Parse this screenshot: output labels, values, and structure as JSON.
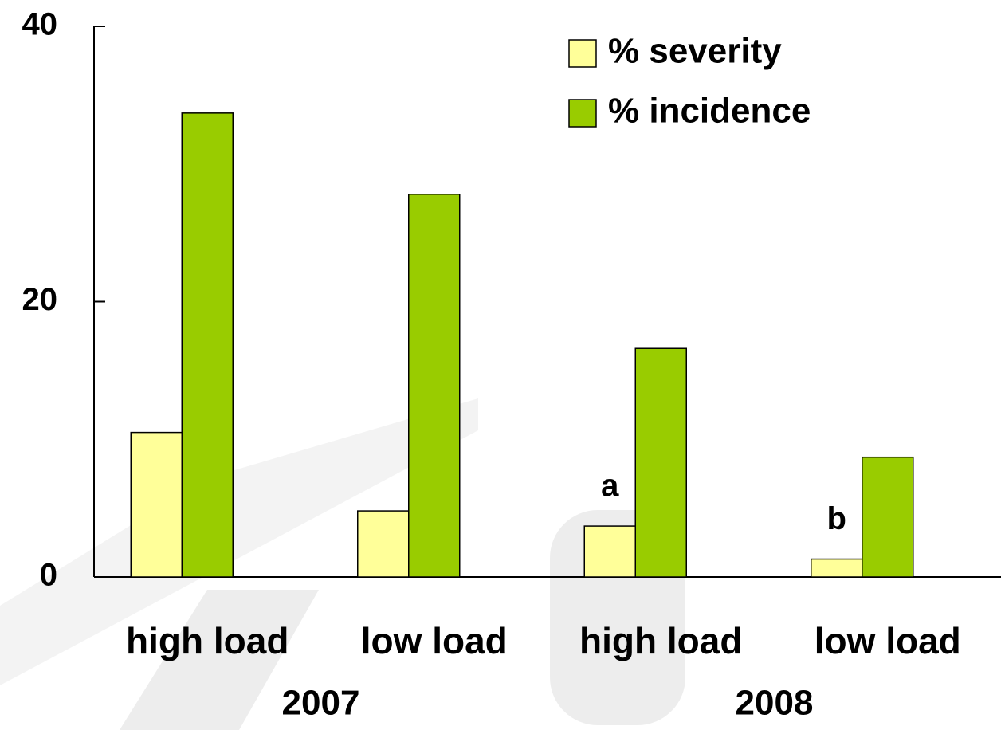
{
  "chart_data": {
    "type": "bar",
    "categories": [
      "high load",
      "low load",
      "high load",
      "low load"
    ],
    "groups": [
      "2007",
      "2008"
    ],
    "series": [
      {
        "name": "% severity",
        "color": "#ffff99",
        "values": [
          10.5,
          4.8,
          3.7,
          1.3
        ],
        "labels": [
          null,
          null,
          "a",
          "b"
        ]
      },
      {
        "name": "% incidence",
        "color": "#99cc00",
        "values": [
          33.7,
          27.8,
          16.6,
          8.7
        ]
      }
    ],
    "ylim": [
      0,
      40
    ],
    "yticks": [
      0,
      20,
      40
    ],
    "legend": "top-right"
  }
}
